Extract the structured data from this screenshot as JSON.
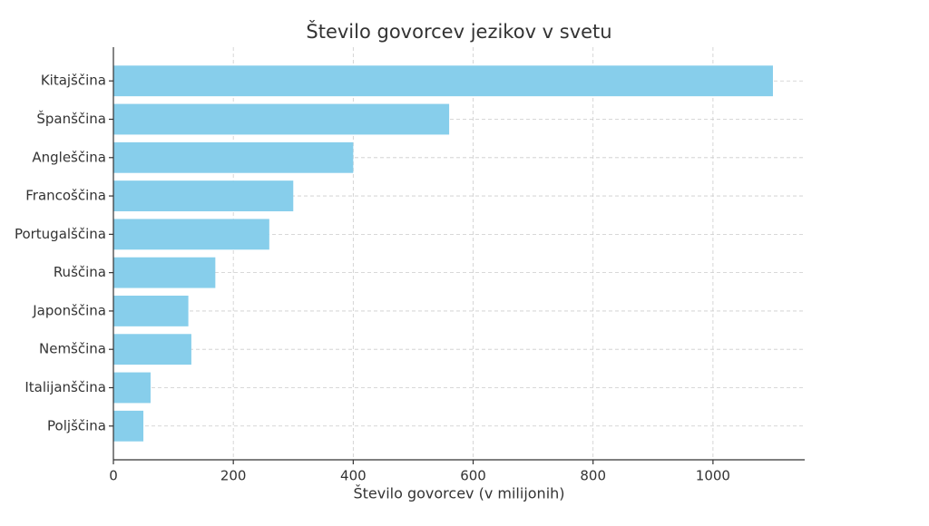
{
  "chart_data": {
    "type": "barh",
    "title": "Število govorcev jezikov v svetu",
    "xlabel": "Število govorcev (v milijonih)",
    "categories": [
      "Kitajščina",
      "Španščina",
      "Angleščina",
      "Francoščina",
      "Portugalščina",
      "Ruščina",
      "Japonščina",
      "Nemščina",
      "Italijanščina",
      "Poljščina"
    ],
    "values": [
      1100,
      560,
      400,
      300,
      260,
      170,
      125,
      130,
      62,
      50
    ],
    "color": "#87ceeb",
    "xlim": [
      0,
      1153
    ],
    "xticks": [
      0,
      200,
      400,
      600,
      800,
      1000
    ],
    "grid": true
  }
}
